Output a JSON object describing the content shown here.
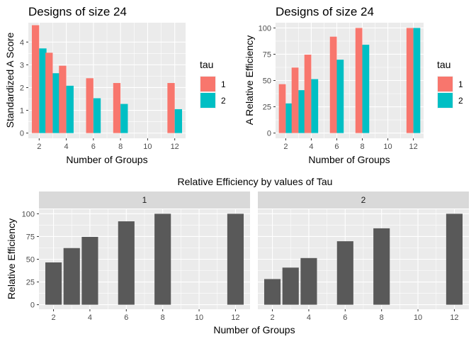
{
  "chart_data": [
    {
      "id": "a",
      "type": "bar",
      "title": "Designs of size 24",
      "xlabel": "Number of Groups",
      "ylabel": "Standardized A Score",
      "x_ticks": [
        2,
        4,
        6,
        8,
        10,
        12
      ],
      "y_ticks": [
        0,
        1,
        2,
        3,
        4
      ],
      "xlim": [
        1.2,
        12.8
      ],
      "ylim": [
        -0.23,
        4.85
      ],
      "legend": {
        "title": "tau",
        "position": "right"
      },
      "categories": [
        2,
        3,
        4,
        6,
        8,
        12
      ],
      "series": [
        {
          "name": "1",
          "color": "#F8766D",
          "values": [
            4.74,
            3.53,
            2.96,
            2.41,
            2.2,
            2.2
          ]
        },
        {
          "name": "2",
          "color": "#00BFC4",
          "values": [
            3.72,
            2.63,
            2.08,
            1.53,
            1.28,
            1.05
          ]
        }
      ]
    },
    {
      "id": "b",
      "type": "bar",
      "title": "Designs of size 24",
      "xlabel": "Number of Groups",
      "ylabel": "A Relative Efficiency",
      "x_ticks": [
        2,
        4,
        6,
        8,
        10,
        12
      ],
      "y_ticks": [
        0,
        25,
        50,
        75,
        100
      ],
      "xlim": [
        1.2,
        12.8
      ],
      "ylim": [
        -5,
        105
      ],
      "legend": {
        "title": "tau",
        "position": "right"
      },
      "categories": [
        2,
        3,
        4,
        6,
        8,
        12
      ],
      "series": [
        {
          "name": "1",
          "color": "#F8766D",
          "values": [
            46.5,
            62.3,
            74.6,
            91.7,
            100,
            100
          ]
        },
        {
          "name": "2",
          "color": "#00BFC4",
          "values": [
            28.2,
            40.8,
            51.3,
            69.8,
            84.0,
            100
          ]
        }
      ]
    },
    {
      "id": "c",
      "type": "bar",
      "title": "Relative Efficiency by values of Tau",
      "xlabel": "Number of Groups",
      "ylabel": "Relative Efficiency",
      "x_ticks": [
        2,
        4,
        6,
        8,
        10,
        12
      ],
      "y_ticks": [
        0,
        25,
        50,
        75,
        100
      ],
      "xlim": [
        1.2,
        12.8
      ],
      "ylim": [
        -5,
        105
      ],
      "bar_color": "#595959",
      "categories": [
        2,
        3,
        4,
        6,
        8,
        12
      ],
      "facets": [
        {
          "label": "1",
          "values": [
            46.5,
            62.3,
            74.6,
            91.7,
            100,
            100
          ]
        },
        {
          "label": "2",
          "values": [
            28.2,
            40.8,
            51.3,
            69.8,
            84.0,
            100
          ]
        }
      ]
    }
  ]
}
